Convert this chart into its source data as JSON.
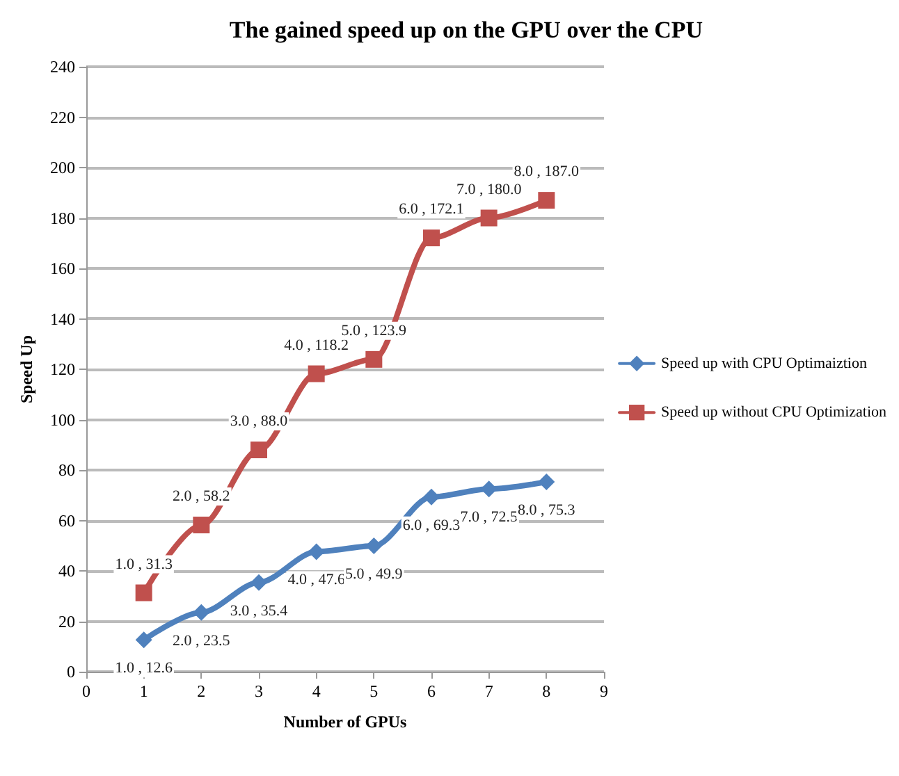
{
  "chart_data": {
    "type": "line",
    "title": "The gained speed up on the GPU over the CPU",
    "xlabel": "Number of GPUs",
    "ylabel": "Speed Up",
    "x": [
      1,
      2,
      3,
      4,
      5,
      6,
      7,
      8
    ],
    "series": [
      {
        "name": "Speed up with CPU Optimaiztion",
        "color": "#4f81bd",
        "marker": "diamond",
        "values": [
          12.6,
          23.5,
          35.4,
          47.6,
          49.9,
          69.3,
          72.5,
          75.3
        ],
        "value_labels": [
          "1.0 , 12.6",
          "2.0 , 23.5",
          "3.0 , 35.4",
          "4.0 , 47.6",
          "5.0 , 49.9",
          "6.0 , 69.3",
          "7.0 , 72.5",
          "8.0 , 75.3"
        ]
      },
      {
        "name": "Speed up without CPU Optimization",
        "color": "#c0504d",
        "marker": "square",
        "values": [
          31.3,
          58.2,
          88.0,
          118.2,
          123.9,
          172.1,
          180.0,
          187.0
        ],
        "value_labels": [
          "1.0 , 31.3",
          "2.0 , 58.2",
          "3.0 , 88.0",
          "4.0 , 118.2",
          "5.0 , 123.9",
          "6.0 , 172.1",
          "7.0 , 180.0",
          "8.0 , 187.0"
        ]
      }
    ],
    "xlim": [
      0,
      9
    ],
    "xticks": [
      0,
      1,
      2,
      3,
      4,
      5,
      6,
      7,
      8,
      9
    ],
    "ylim": [
      0,
      240
    ],
    "yticks": [
      0,
      20,
      40,
      60,
      80,
      100,
      120,
      140,
      160,
      180,
      200,
      220,
      240
    ],
    "grid": "y",
    "legend": "right",
    "line_style": "solid"
  }
}
